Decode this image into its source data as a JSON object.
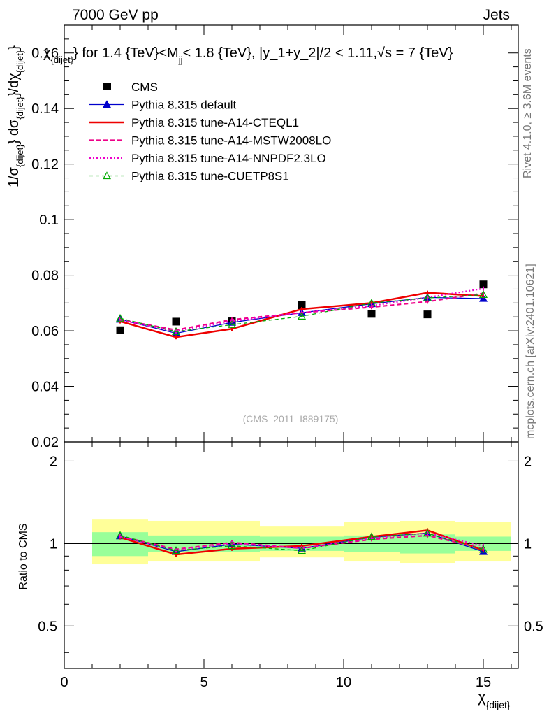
{
  "header": {
    "left": "7000 GeV pp",
    "right": "Jets"
  },
  "side_labels": {
    "rivet": "Rivet 4.1.0, ≥ 3.6M events",
    "mcplots": "mcplots.cern.ch [arXiv:2401.10621]"
  },
  "colors": {
    "CMS": "#000000",
    "Pythia 8.315 default": "#0000cc",
    "Pythia 8.315 tune-A14-CTEQL1": "#ee0000",
    "Pythia 8.315 tune-A14-MSTW2008LO": "#ee0088",
    "Pythia 8.315 tune-A14-NNPDF2.3LO": "#ee00cc",
    "Pythia 8.315 tune-CUETP8S1": "#00aa00",
    "band_inner": "#99ff99",
    "band_outer": "#ffff99"
  },
  "chart_data": [
    {
      "type": "line",
      "title": "χ_{dijet} for 1.4 {TeV}<M_{jj}< 1.8 {TeV}, |y_1+y_2|/2 < 1.11,√s = 7 {TeV}",
      "title_parts": {
        "chi": "χ",
        "chi_sub": "{dijet}",
        "for_text": "} for 1.4 {TeV}<M",
        "m_sub": "jj",
        "rest": "< 1.8 {TeV}, |y_1+y_2|/2 < 1.11,√s = 7 {TeV}"
      },
      "ylabel": "1/σ_{dijet} dσ_{dijet}/dχ_{dijet}",
      "ylabel_parts": [
        "1/σ",
        "{dijet}",
        "} dσ",
        "{dijet}",
        "}/dχ",
        "{dijet}",
        "}"
      ],
      "xlim": [
        0,
        16.25
      ],
      "ylim": [
        0.02,
        0.17
      ],
      "yticks": [
        0.02,
        0.04,
        0.06,
        0.08,
        0.1,
        0.12,
        0.14,
        0.16
      ],
      "ytick_labels": [
        "0.02",
        "0.04",
        "0.06",
        "0.08",
        "0.1",
        "0.12",
        "0.14",
        "0.16"
      ],
      "watermark": "(CMS_2011_I889175)",
      "x": [
        2,
        4,
        6,
        8.5,
        11,
        13,
        15
      ],
      "bin_edges": [
        1,
        3,
        5,
        7,
        10,
        12,
        14,
        16
      ],
      "series": [
        {
          "name": "CMS",
          "style": "data",
          "values": [
            0.0602,
            0.0633,
            0.0634,
            0.0692,
            0.0661,
            0.0659,
            0.0767
          ]
        },
        {
          "name": "Pythia 8.315 default",
          "style": "solid-triangle",
          "values": [
            0.0641,
            0.0591,
            0.063,
            0.0665,
            0.0697,
            0.072,
            0.0716
          ]
        },
        {
          "name": "Pythia 8.315 tune-A14-CTEQL1",
          "style": "solid-thick",
          "values": [
            0.0634,
            0.0577,
            0.0607,
            0.0678,
            0.07,
            0.0737,
            0.0725
          ]
        },
        {
          "name": "Pythia 8.315 tune-A14-MSTW2008LO",
          "style": "dashed",
          "values": [
            0.064,
            0.0603,
            0.064,
            0.0665,
            0.0685,
            0.0705,
            0.0735
          ]
        },
        {
          "name": "Pythia 8.315 tune-A14-NNPDF2.3LO",
          "style": "dotted",
          "values": [
            0.0638,
            0.0598,
            0.0635,
            0.0665,
            0.069,
            0.072,
            0.0752
          ]
        },
        {
          "name": "Pythia 8.315 tune-CUETP8S1",
          "style": "dashed-open-triangle",
          "values": [
            0.0645,
            0.0597,
            0.0622,
            0.0652,
            0.07,
            0.0718,
            0.073
          ]
        }
      ]
    },
    {
      "type": "line",
      "title": "",
      "xlabel": "χ_{dijet}",
      "xlabel_parts": [
        "χ",
        "{dijet}"
      ],
      "ylabel": "Ratio to CMS",
      "xlim": [
        0,
        16.25
      ],
      "ylim": [
        0.35,
        2.35
      ],
      "yscale": "log",
      "yticks": [
        0.5,
        1,
        2
      ],
      "ytick_labels": [
        "0.5",
        "1",
        "2"
      ],
      "xticks": [
        0,
        5,
        10,
        15
      ],
      "xtick_labels": [
        "0",
        "5",
        "10",
        "15"
      ],
      "bin_edges": [
        1,
        3,
        5,
        7,
        10,
        12,
        14,
        16
      ],
      "band_inner": [
        [
          0.9,
          1.1
        ],
        [
          0.93,
          1.07
        ],
        [
          0.93,
          1.07
        ],
        [
          0.94,
          1.06
        ],
        [
          0.93,
          1.07
        ],
        [
          0.92,
          1.08
        ],
        [
          0.94,
          1.06
        ]
      ],
      "band_outer": [
        [
          0.84,
          1.23
        ],
        [
          0.86,
          1.21
        ],
        [
          0.86,
          1.21
        ],
        [
          0.89,
          1.16
        ],
        [
          0.86,
          1.2
        ],
        [
          0.85,
          1.21
        ],
        [
          0.86,
          1.2
        ]
      ],
      "x": [
        2,
        4,
        6,
        8.5,
        11,
        13,
        15
      ],
      "series": [
        {
          "name": "Pythia 8.315 default",
          "values": [
            1.065,
            0.934,
            0.994,
            0.961,
            1.054,
            1.092,
            0.934
          ]
        },
        {
          "name": "Pythia 8.315 tune-A14-CTEQL1",
          "values": [
            1.053,
            0.912,
            0.957,
            0.98,
            1.059,
            1.118,
            0.945
          ]
        },
        {
          "name": "Pythia 8.315 tune-A14-MSTW2008LO",
          "values": [
            1.063,
            0.953,
            1.009,
            0.961,
            1.036,
            1.07,
            0.958
          ]
        },
        {
          "name": "Pythia 8.315 tune-A14-NNPDF2.3LO",
          "values": [
            1.06,
            0.945,
            1.002,
            0.961,
            1.044,
            1.092,
            0.98
          ]
        },
        {
          "name": "Pythia 8.315 tune-CUETP8S1",
          "values": [
            1.071,
            0.943,
            0.981,
            0.942,
            1.059,
            1.09,
            0.952
          ]
        }
      ]
    }
  ]
}
